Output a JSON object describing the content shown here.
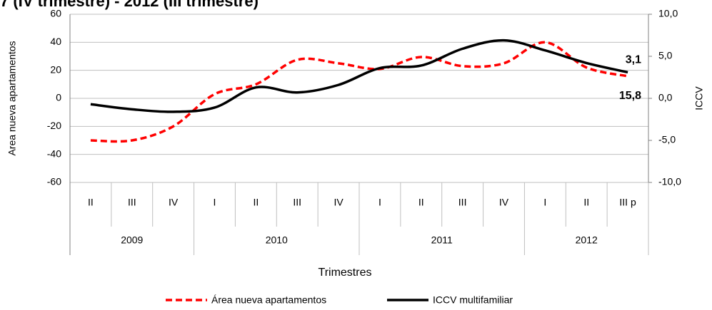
{
  "chart_data": {
    "type": "line",
    "title": "7 (IV trimestre) - 2012 (III trimestre)",
    "categories": [
      "II",
      "III",
      "IV",
      "I",
      "II",
      "III",
      "IV",
      "I",
      "II",
      "III",
      "IV",
      "I",
      "II",
      "III p"
    ],
    "category_groups": [
      "2009",
      "2009",
      "2009",
      "2010",
      "2010",
      "2010",
      "2010",
      "2011",
      "2011",
      "2011",
      "2011",
      "2012",
      "2012",
      "2012"
    ],
    "x_label": "Trimestres",
    "y_label": "Area nueva apartamentos",
    "y2_label": "ICCV",
    "ylim": [
      -60,
      60
    ],
    "yticks": [
      -60,
      -40,
      -20,
      0,
      20,
      40,
      60
    ],
    "y2lim": [
      -10,
      10
    ],
    "y2ticks": [
      {
        "value": -10,
        "label": "-10,0"
      },
      {
        "value": -5,
        "label": "-5,0"
      },
      {
        "value": 0,
        "label": "0,0"
      },
      {
        "value": 5,
        "label": "5,0"
      },
      {
        "value": 10,
        "label": "10,0"
      }
    ],
    "grid": true,
    "series": [
      {
        "name": "Área nueva apartamentos",
        "color": "#ff0000",
        "dash": true,
        "values": [
          -30,
          -30,
          -20,
          3,
          10,
          27.5,
          25,
          21,
          29.5,
          23,
          25,
          40,
          22,
          15.8
        ],
        "value_labels": [
          null,
          null,
          null,
          null,
          null,
          null,
          null,
          null,
          null,
          null,
          null,
          null,
          null,
          "15,8"
        ]
      },
      {
        "name": "ICCV multifamiliar",
        "color": "#000000",
        "axis": "y2",
        "values": [
          -0.7,
          -1.3,
          -1.6,
          -1.1,
          1.3,
          0.7,
          1.6,
          3.6,
          3.9,
          5.9,
          6.9,
          5.7,
          4.2,
          3.1
        ],
        "value_labels": [
          null,
          null,
          null,
          null,
          null,
          null,
          null,
          null,
          null,
          null,
          null,
          null,
          null,
          "3,1"
        ]
      }
    ]
  }
}
